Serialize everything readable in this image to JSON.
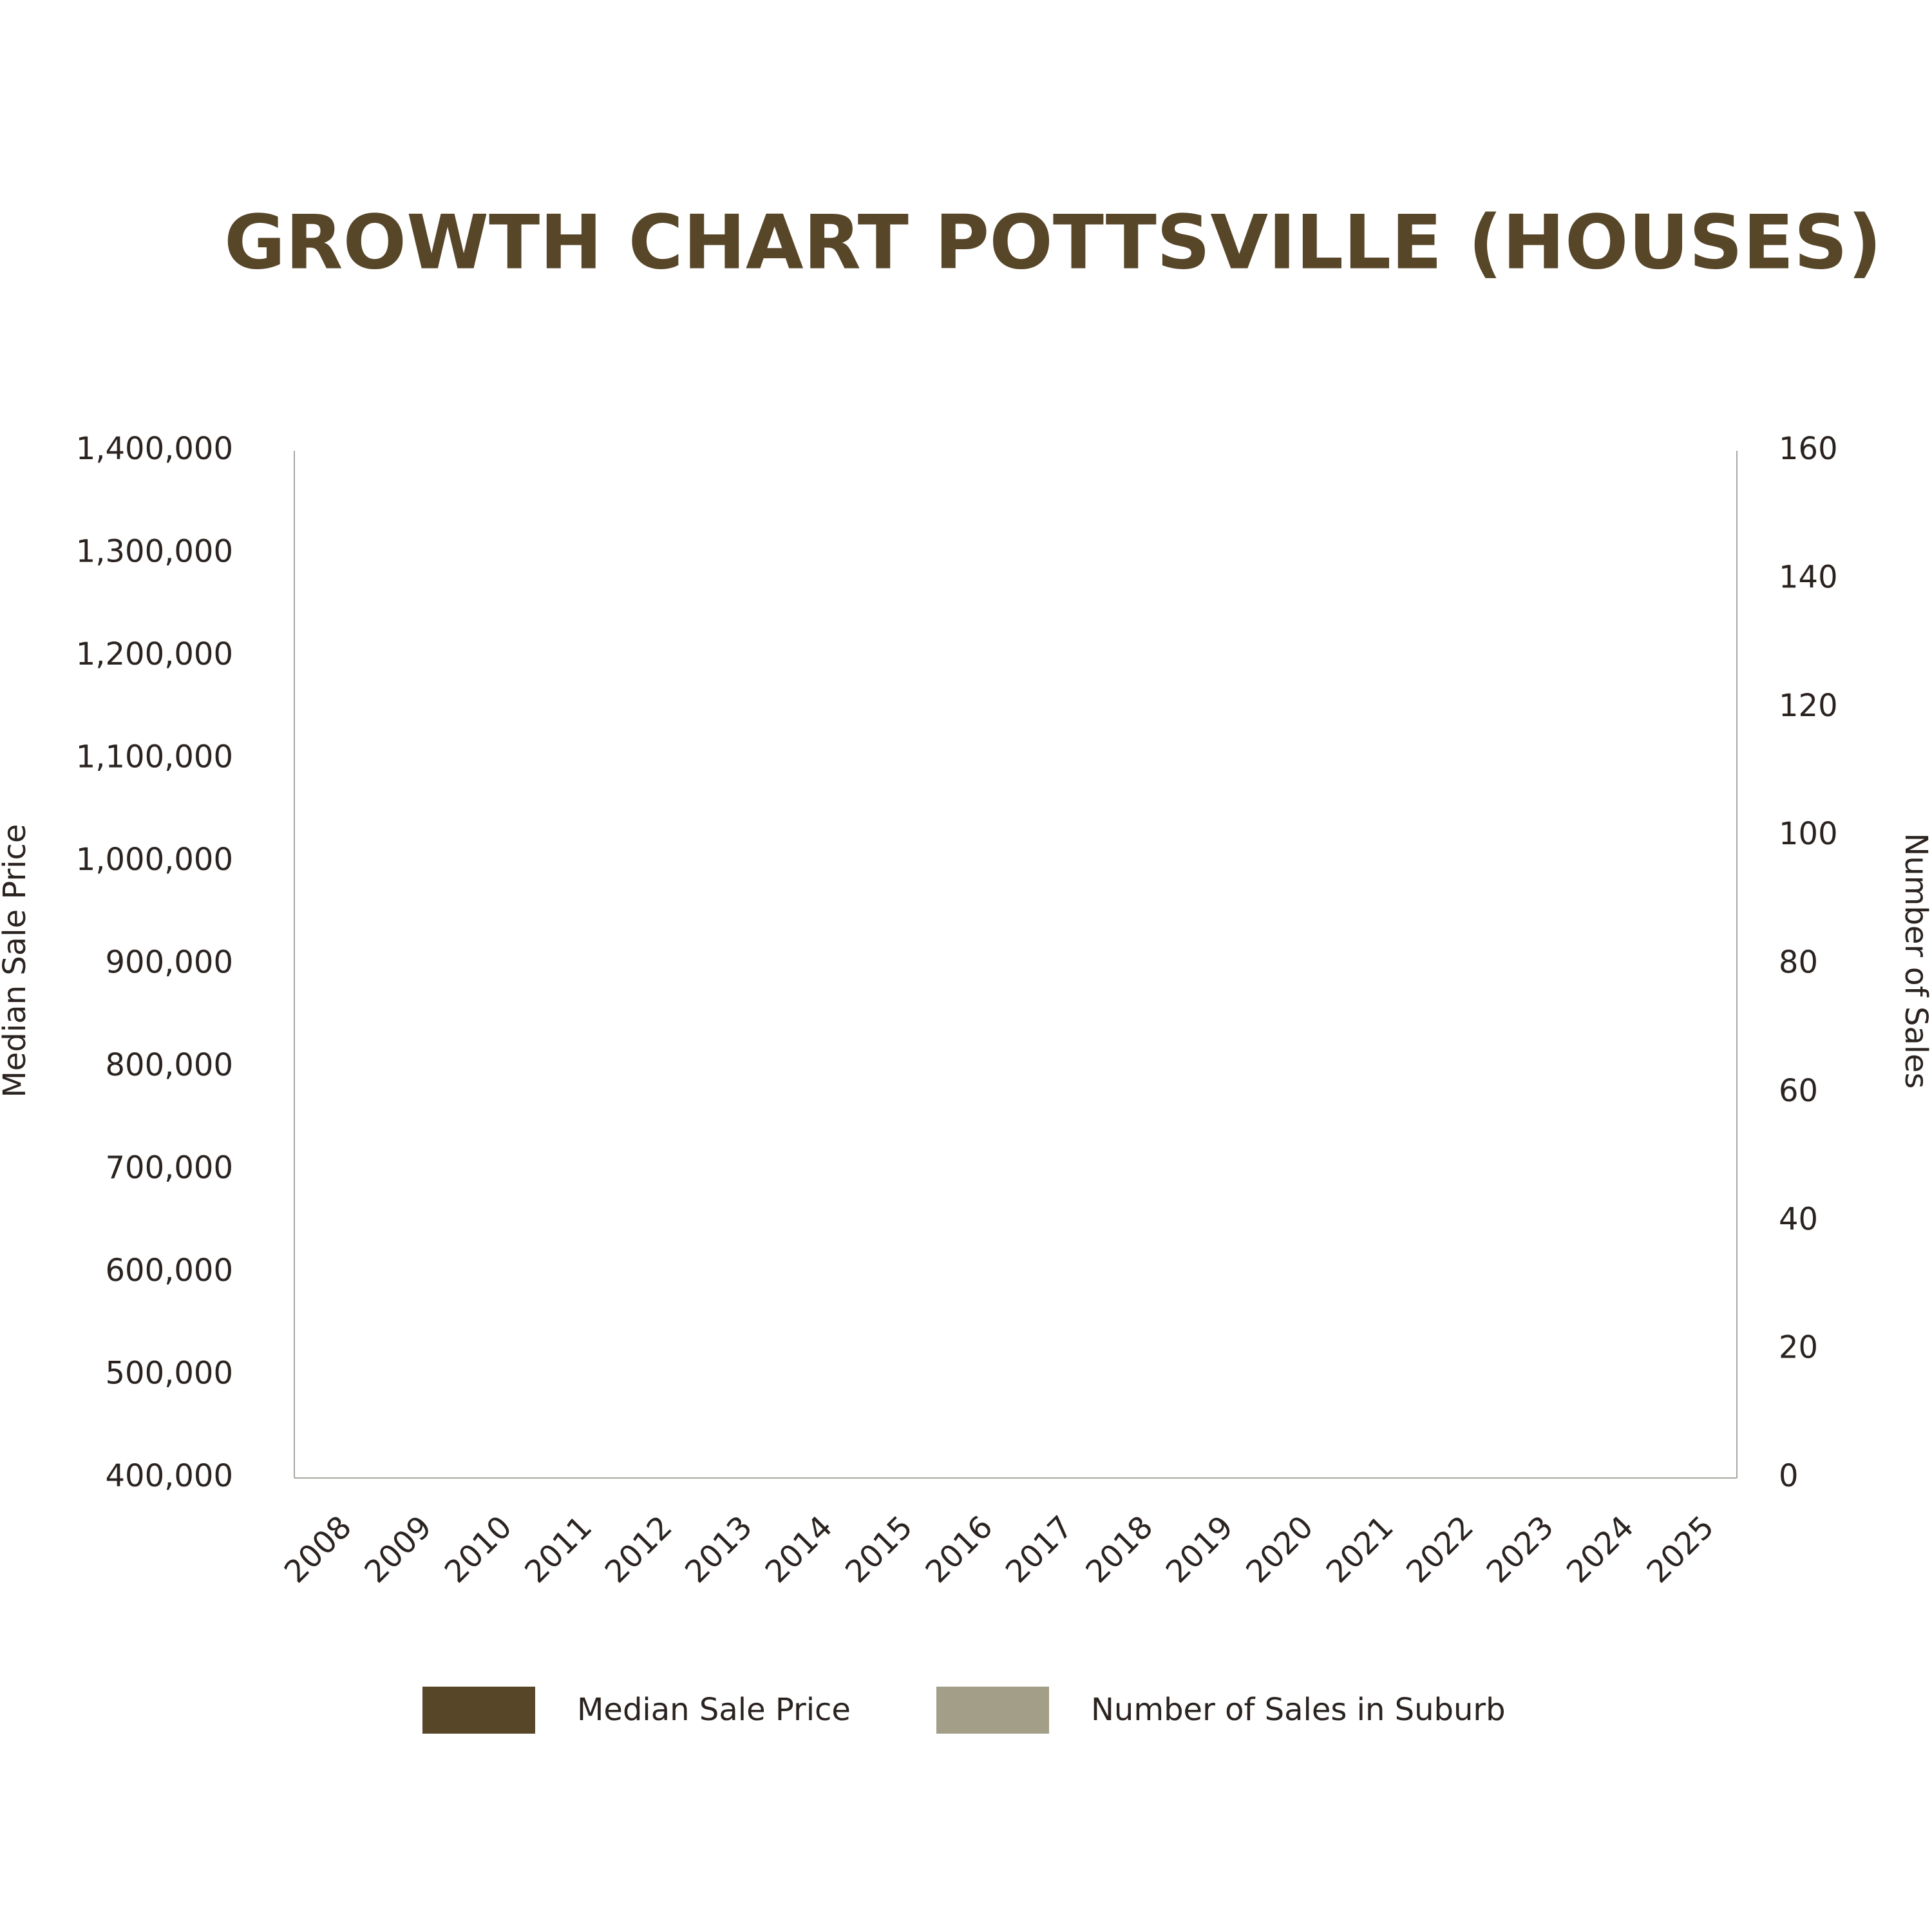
{
  "chart_data": {
    "type": "bar",
    "title": "GROWTH CHART POTTSVILLE (HOUSES)",
    "y_label": "Median Sale Price",
    "y2_label": "Number of Sales",
    "categories": [
      "2008",
      "2009",
      "2010",
      "2011",
      "2012",
      "2013",
      "2014",
      "2015",
      "2016",
      "2017",
      "2018",
      "2019",
      "2020",
      "2021",
      "2022",
      "2023",
      "2024",
      "2025"
    ],
    "series": [
      {
        "name": "Median Sale Price",
        "color": "#574628",
        "values": [
          null,
          null,
          null,
          null,
          null,
          null,
          null,
          null,
          null,
          null,
          null,
          null,
          null,
          null,
          null,
          null,
          null,
          null
        ]
      },
      {
        "name": "Number of Sales in Suburb",
        "color": "#a29e87",
        "axis": "y2",
        "values": [
          null,
          null,
          null,
          null,
          null,
          null,
          null,
          null,
          null,
          null,
          null,
          null,
          null,
          null,
          null,
          null,
          null,
          null
        ]
      }
    ],
    "ylim": [
      400000,
      1400000
    ],
    "yticks": [
      {
        "value": 400000,
        "label": "400,000"
      },
      {
        "value": 500000,
        "label": "500,000"
      },
      {
        "value": 600000,
        "label": "600,000"
      },
      {
        "value": 700000,
        "label": "700,000"
      },
      {
        "value": 800000,
        "label": "800,000"
      },
      {
        "value": 900000,
        "label": "900,000"
      },
      {
        "value": 1000000,
        "label": "1,000,000"
      },
      {
        "value": 1100000,
        "label": "1,100,000"
      },
      {
        "value": 1200000,
        "label": "1,200,000"
      },
      {
        "value": 1300000,
        "label": "1,300,000"
      },
      {
        "value": 1400000,
        "label": "1,400,000"
      }
    ],
    "y2lim": [
      0,
      160
    ],
    "y2ticks": [
      0,
      20,
      40,
      60,
      80,
      100,
      120,
      140,
      160
    ],
    "grid": false,
    "legend": "bottom"
  }
}
